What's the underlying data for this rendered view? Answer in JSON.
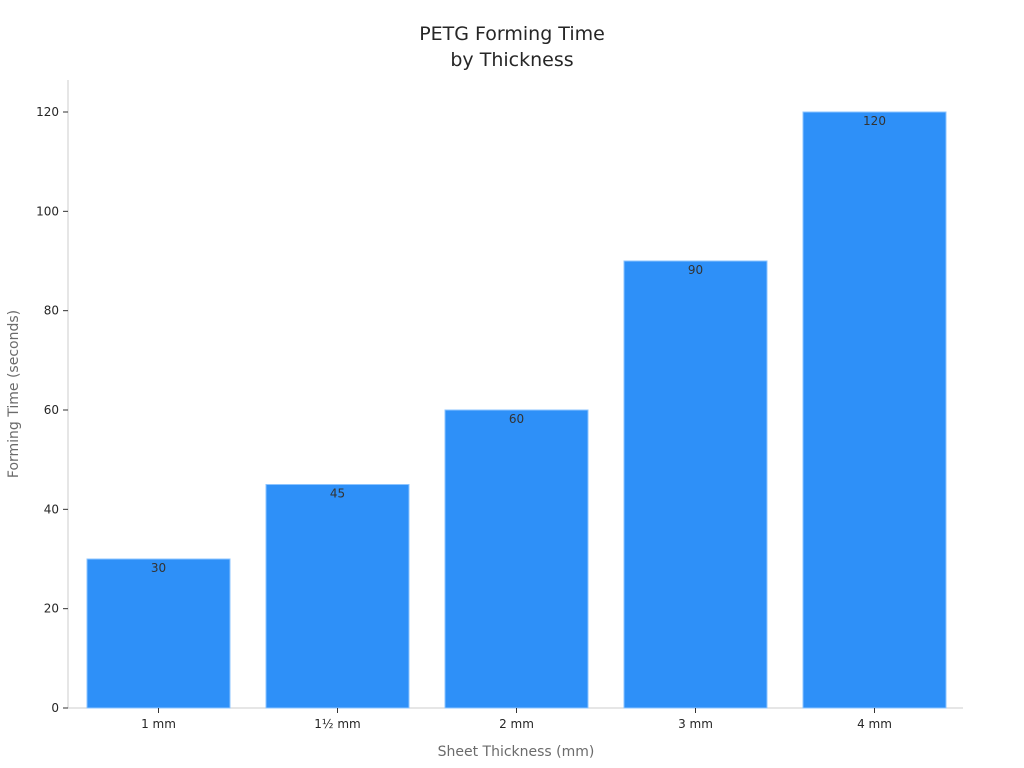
{
  "chart_data": {
    "type": "bar",
    "title": [
      "PETG Forming Time",
      "by Thickness"
    ],
    "xlabel": "Sheet Thickness (mm)",
    "ylabel": "Forming Time (seconds)",
    "categories": [
      "1 mm",
      "1½ mm",
      "2 mm",
      "3 mm",
      "4 mm"
    ],
    "values": [
      30,
      45,
      60,
      90,
      120
    ],
    "data_labels": [
      "30",
      "45",
      "60",
      "90",
      "120"
    ],
    "ylim": [
      0,
      126
    ],
    "yticks": [
      0,
      20,
      40,
      60,
      80,
      100,
      120
    ],
    "grid": false,
    "bar_color": "#2e90f8",
    "bar_edge_color": "#8cc4ff"
  }
}
